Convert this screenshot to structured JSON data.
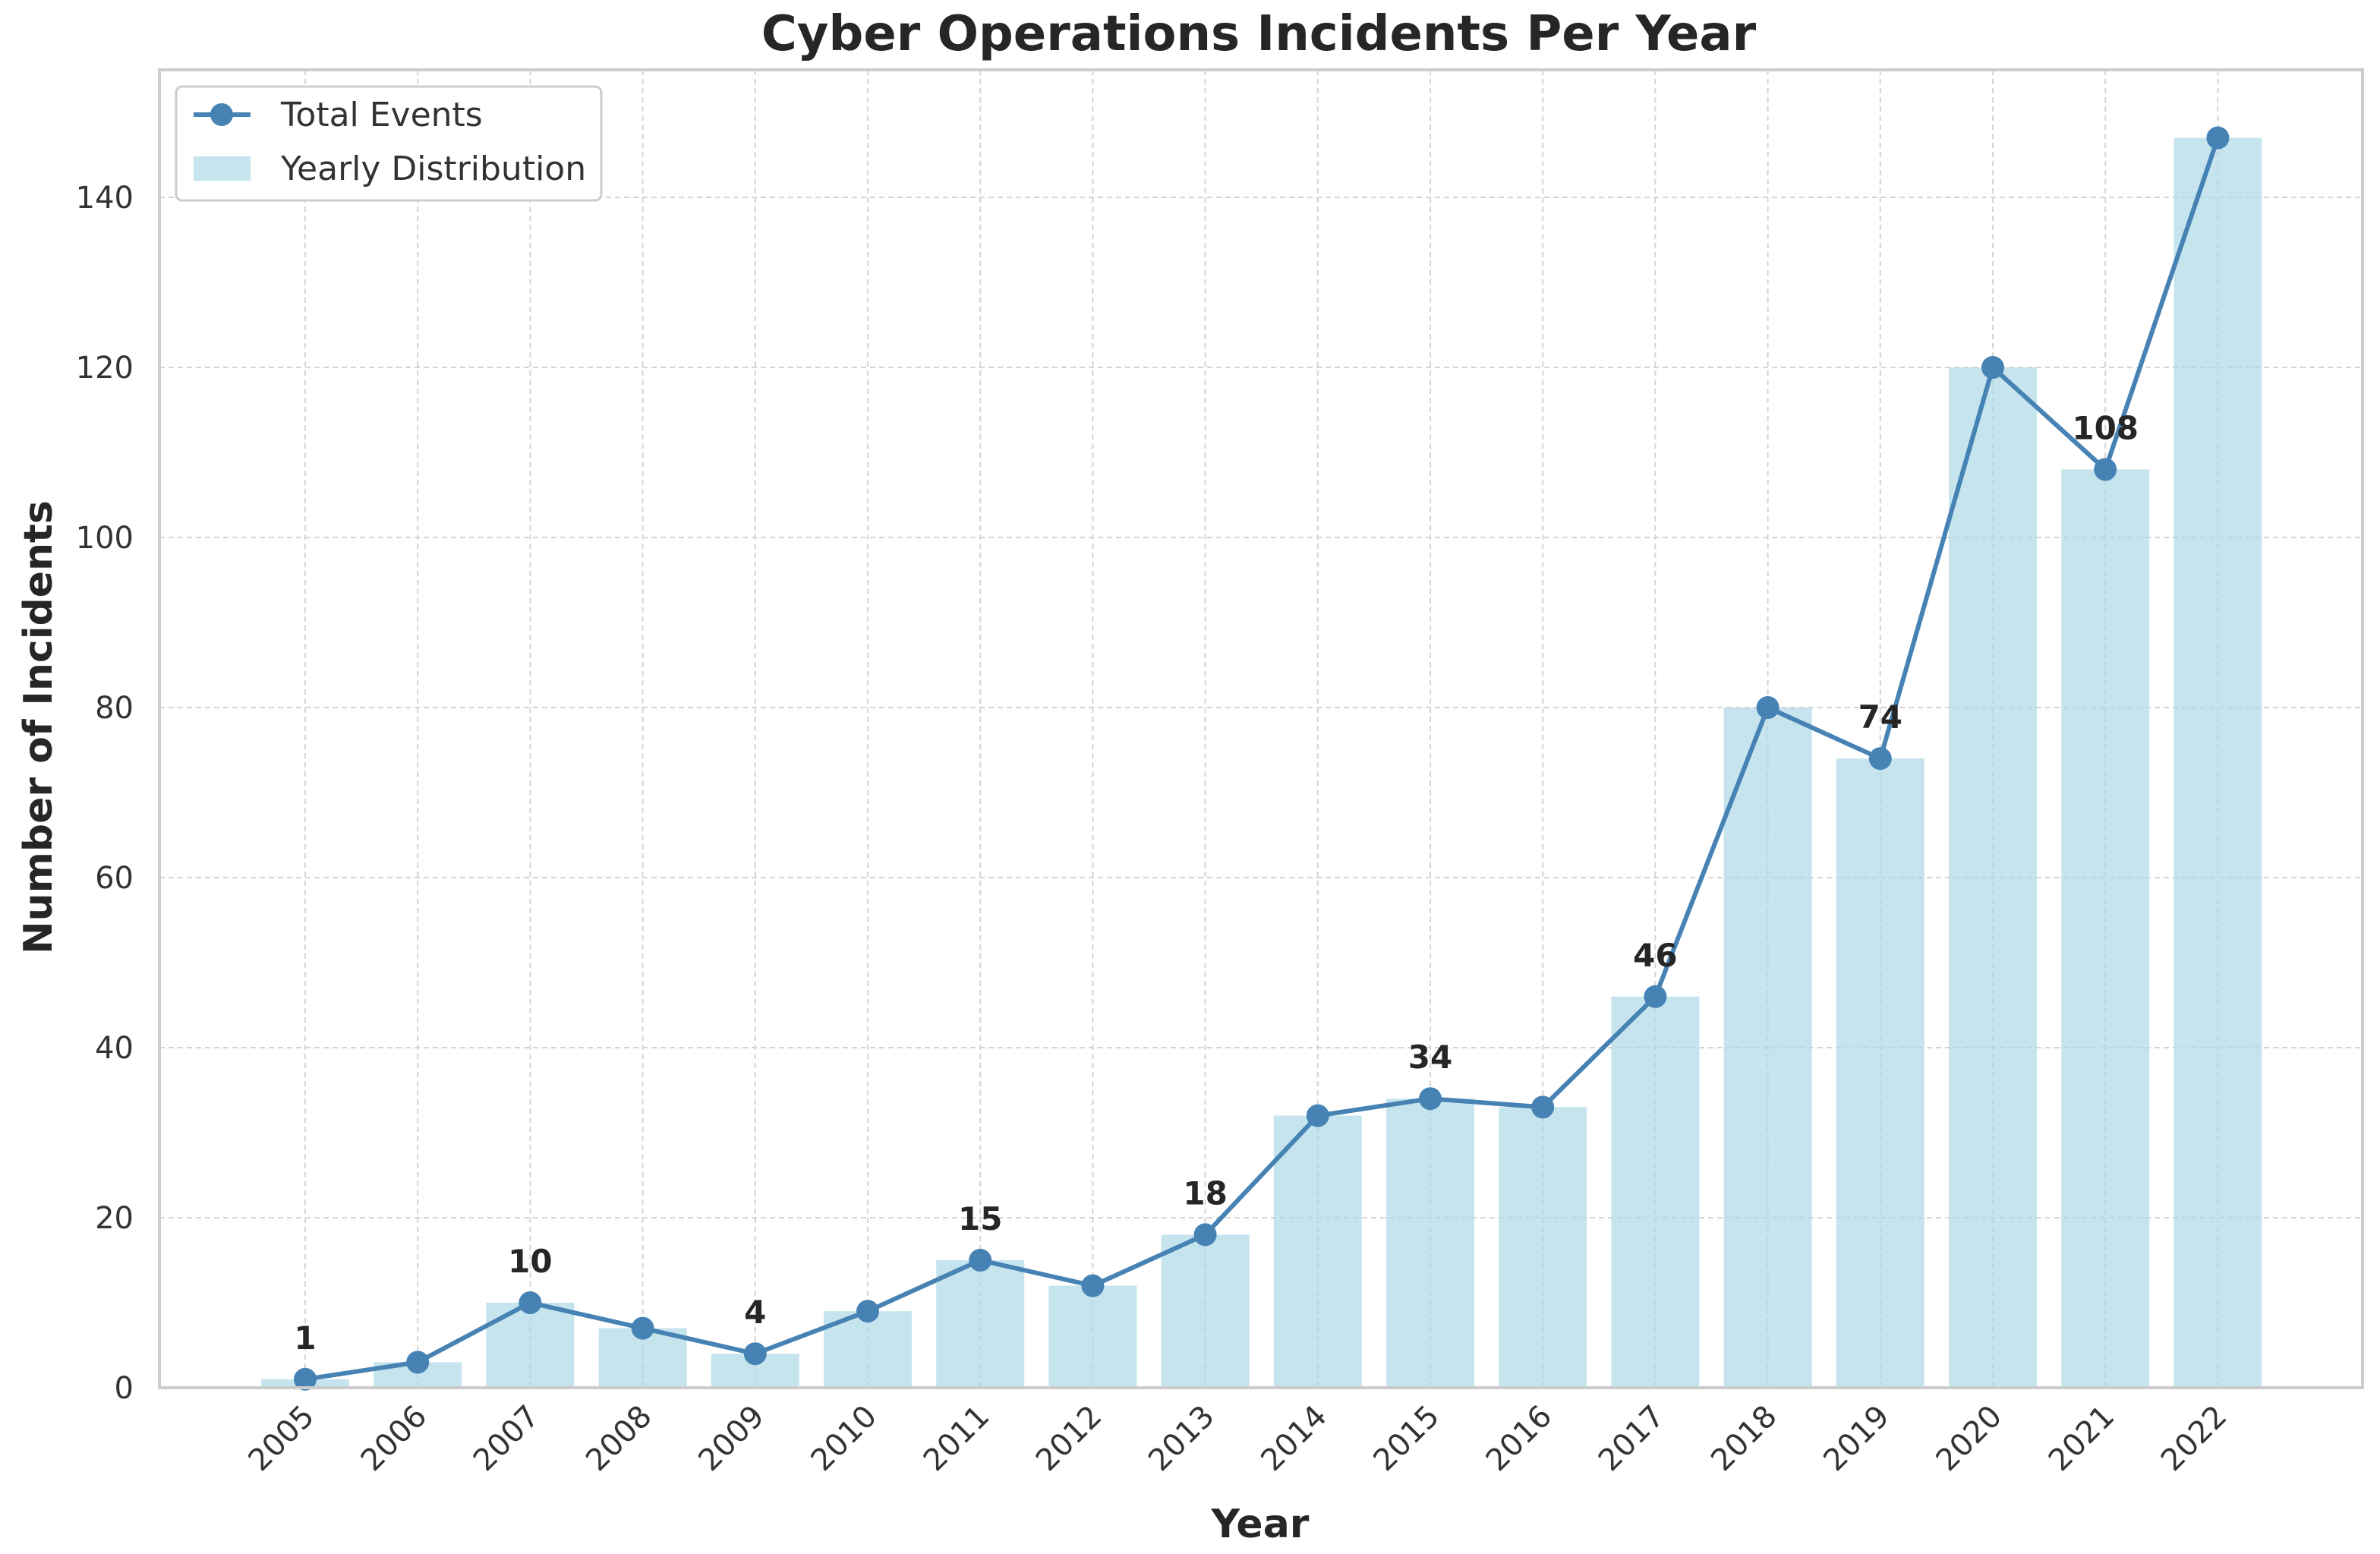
{
  "chart_data": {
    "type": "bar",
    "title": "Cyber Operations Incidents Per Year",
    "xlabel": "Year",
    "ylabel": "Number of Incidents",
    "ylim": [
      0,
      155
    ],
    "yticks": [
      0,
      20,
      40,
      60,
      80,
      100,
      120,
      140
    ],
    "grid": true,
    "legend_position": "top-left",
    "categories": [
      "2005",
      "2006",
      "2007",
      "2008",
      "2009",
      "2010",
      "2011",
      "2012",
      "2013",
      "2014",
      "2015",
      "2016",
      "2017",
      "2018",
      "2019",
      "2020",
      "2021",
      "2022"
    ],
    "series": [
      {
        "name": "Total Events",
        "type": "line",
        "color": "#4682b4",
        "values": [
          1,
          3,
          10,
          7,
          4,
          9,
          15,
          12,
          18,
          32,
          34,
          33,
          46,
          80,
          74,
          120,
          108,
          147
        ]
      },
      {
        "name": "Yearly Distribution",
        "type": "bar",
        "color": "#add8e6",
        "values": [
          1,
          3,
          10,
          7,
          4,
          9,
          15,
          12,
          18,
          32,
          34,
          33,
          46,
          80,
          74,
          120,
          108,
          147
        ]
      }
    ],
    "annotations": [
      {
        "year": "2005",
        "value": 1,
        "text": "1"
      },
      {
        "year": "2007",
        "value": 10,
        "text": "10"
      },
      {
        "year": "2009",
        "value": 4,
        "text": "4"
      },
      {
        "year": "2011",
        "value": 15,
        "text": "15"
      },
      {
        "year": "2013",
        "value": 18,
        "text": "18"
      },
      {
        "year": "2015",
        "value": 34,
        "text": "34"
      },
      {
        "year": "2017",
        "value": 46,
        "text": "46"
      },
      {
        "year": "2019",
        "value": 74,
        "text": "74"
      },
      {
        "year": "2021",
        "value": 108,
        "text": "108"
      }
    ]
  }
}
